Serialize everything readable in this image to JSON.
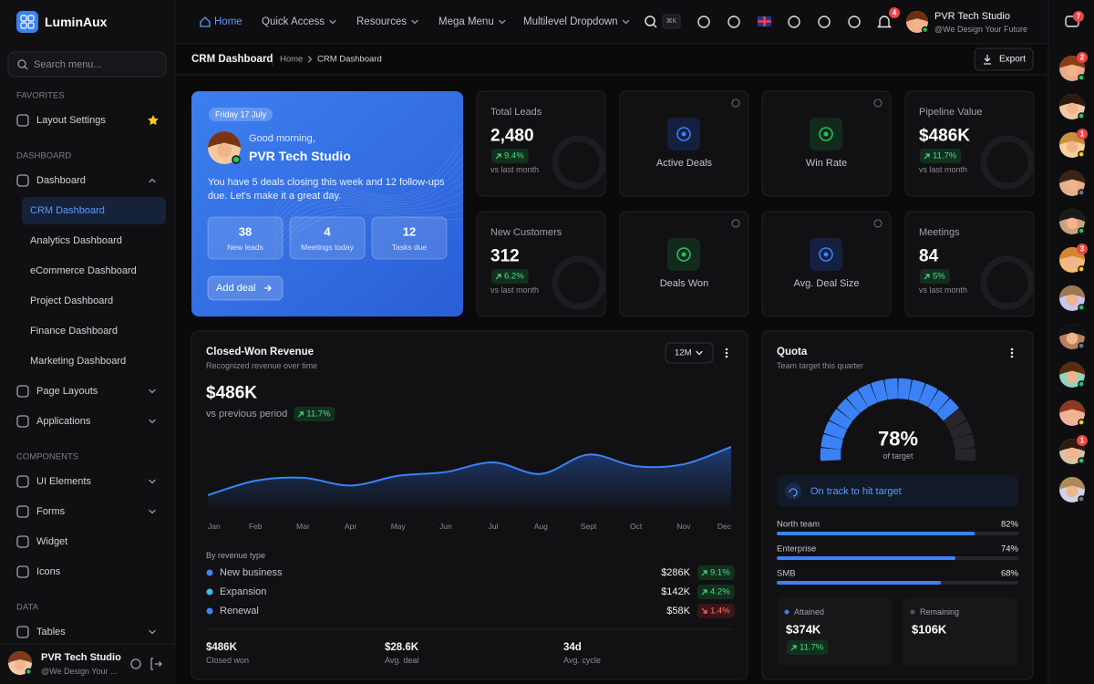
{
  "brand": "LuminAux",
  "search_placeholder": "Search menu...",
  "sidebar": {
    "sections": [
      {
        "title": "FAVORITES",
        "items": [
          "Layout Settings"
        ]
      },
      {
        "title": "DASHBOARD",
        "items": [
          "Dashboard",
          "CRM Dashboard",
          "Analytics Dashboard",
          "eCommerce Dashboard",
          "Project Dashboard",
          "Finance Dashboard",
          "Marketing Dashboard",
          "Page Layouts",
          "Applications"
        ]
      },
      {
        "title": "COMPONENTS",
        "items": [
          "UI Elements",
          "Forms",
          "Widget",
          "Icons"
        ]
      },
      {
        "title": "DATA",
        "items": [
          "Tables"
        ]
      }
    ],
    "user": {
      "name": "PVR Tech Studio",
      "tagline": "@We Design Your ..."
    }
  },
  "topnav": {
    "items": [
      "Home",
      "Quick Access",
      "Resources",
      "Mega Menu",
      "Multilevel Dropdown"
    ],
    "shortcut": "⌘K",
    "notification_count": 4,
    "user": {
      "name": "PVR Tech Studio",
      "tagline": "@We Design Your Future"
    },
    "chat_count": 7
  },
  "breadcrumb": {
    "page": "CRM Dashboard",
    "trail": [
      "Home",
      "CRM Dashboard"
    ]
  },
  "export": "Export",
  "welcome": {
    "date": "Friday 17 July",
    "greeting": "Good morning,",
    "name": "PVR Tech Studio",
    "message": "You have 5 deals closing this week and 12 follow-ups due. Let's make it a great day.",
    "stats": [
      {
        "value": 38,
        "label": "New leads"
      },
      {
        "value": 4,
        "label": "Meetings today"
      },
      {
        "value": 12,
        "label": "Tasks due"
      }
    ],
    "button": "Add deal"
  },
  "kpis": [
    {
      "title": "Total Leads",
      "value": "2,480",
      "change": "9.4%",
      "note": "vs last month"
    },
    {
      "title": "Pipeline Value",
      "value": "$486K",
      "change": "11.7%",
      "note": "vs last month"
    },
    {
      "title": "New Customers",
      "value": "312",
      "change": "6.2%",
      "note": "vs last month"
    },
    {
      "title": "Meetings",
      "value": "84",
      "change": "5%",
      "note": "vs last month"
    }
  ],
  "tiles": [
    "Active Deals",
    "Win Rate",
    "Deals Won",
    "Avg. Deal Size"
  ],
  "revenue": {
    "title": "Closed-Won Revenue",
    "subtitle": "Recognized revenue over time",
    "range": "12M",
    "total": "$486K",
    "compare": "vs previous period",
    "change": "11.7%",
    "chart": {
      "type": "line",
      "categories": [
        "Jan",
        "Feb",
        "Mar",
        "Apr",
        "May",
        "Jun",
        "Jul",
        "Aug",
        "Sept",
        "Oct",
        "Nov",
        "Dec"
      ],
      "values": [
        20,
        35,
        38,
        30,
        40,
        44,
        54,
        42,
        62,
        50,
        52,
        70
      ]
    },
    "breakdown_title": "By revenue type",
    "breakdown": [
      {
        "name": "New business",
        "amount": "$286K",
        "change": "9.1%"
      },
      {
        "name": "Expansion",
        "amount": "$142K",
        "change": "4.2%"
      },
      {
        "name": "Renewal",
        "amount": "$58K",
        "change": "1.4%"
      }
    ],
    "footer": [
      {
        "value": "$486K",
        "label": "Closed won"
      },
      {
        "value": "$28.6K",
        "label": "Avg. deal"
      },
      {
        "value": "34d",
        "label": "Avg. cycle"
      }
    ]
  },
  "quota": {
    "title": "Quota",
    "subtitle": "Team target this quarter",
    "gauge": {
      "value": 78,
      "label": "78%",
      "caption": "of target"
    },
    "status": "On track to hit target",
    "teams": [
      {
        "name": "North team",
        "value": 82,
        "label": "82%"
      },
      {
        "name": "Enterprise",
        "value": 74,
        "label": "74%"
      },
      {
        "name": "SMB",
        "value": 68,
        "label": "68%"
      }
    ],
    "attained": {
      "label": "Attained",
      "value": "$374K",
      "change": "11.7%"
    },
    "remaining": {
      "label": "Remaining",
      "value": "$106K"
    }
  },
  "rail": {
    "badges": [
      2,
      1,
      3,
      1
    ]
  }
}
